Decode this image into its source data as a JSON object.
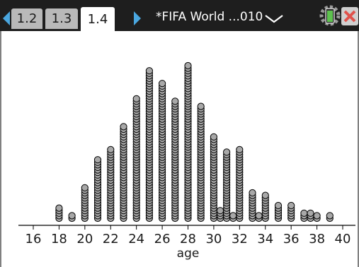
{
  "header": {
    "tabs": [
      {
        "label": "1.2",
        "active": false
      },
      {
        "label": "1.3",
        "active": false
      },
      {
        "label": "1.4",
        "active": true
      }
    ],
    "document_title": "*FIFA World ...010",
    "icons": [
      "left-arrow-icon",
      "right-arrow-icon",
      "dropdown-icon",
      "battery-icon",
      "close-icon"
    ]
  },
  "colors": {
    "title_bar": "#1e1e1e",
    "tab_inactive": "#b9b9b9",
    "tab_active": "#ffffff",
    "tab_arrow": "#4aa7e0",
    "dot_fill": "#a8a8a8",
    "dot_stroke": "#000000",
    "close": "#e0524c",
    "battery": "#5ec24f"
  },
  "chart_data": {
    "type": "dot plot",
    "xlabel": "age",
    "xlim": [
      16,
      40
    ],
    "x_ticks": [
      16,
      18,
      20,
      22,
      24,
      26,
      28,
      30,
      32,
      34,
      36,
      38,
      40
    ],
    "x": [
      18,
      19,
      20,
      21,
      22,
      23,
      24,
      25,
      26,
      27,
      28,
      29,
      30,
      31,
      32,
      33,
      34,
      35,
      36,
      37,
      38,
      39
    ],
    "counts": [
      5,
      2,
      13,
      24,
      28,
      37,
      48,
      59,
      54,
      47,
      61,
      45,
      33,
      27,
      28,
      11,
      10,
      6,
      6,
      3,
      2,
      2
    ],
    "subcolumns": [
      {
        "x": 30.5,
        "count": 4
      },
      {
        "x": 31.5,
        "count": 2
      },
      {
        "x": 33.5,
        "count": 2
      },
      {
        "x": 37.5,
        "count": 3
      }
    ]
  }
}
